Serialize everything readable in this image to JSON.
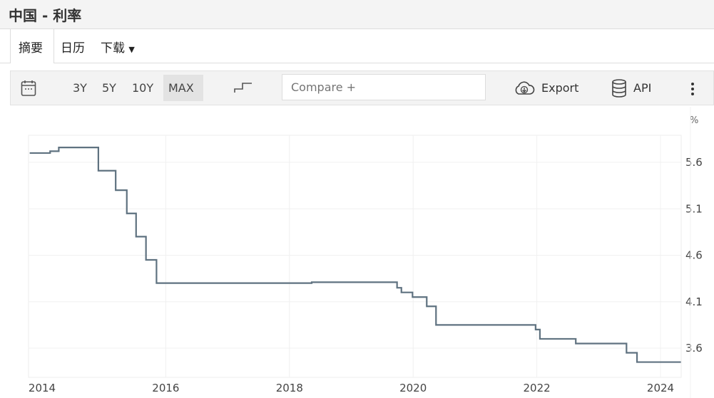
{
  "header": {
    "title": "中国 - 利率"
  },
  "tabs": [
    {
      "label": "摘要"
    },
    {
      "label": "日历"
    },
    {
      "label": "下载"
    }
  ],
  "toolbar": {
    "ranges": [
      "3Y",
      "5Y",
      "10Y",
      "MAX"
    ],
    "selected_range": "MAX",
    "compare_placeholder": "Compare +",
    "export_label": "Export",
    "api_label": "API",
    "icons": [
      "calendar-icon",
      "step-chart-icon",
      "cloud-download-icon",
      "database-icon",
      "more-vertical-icon"
    ]
  },
  "chart_data": {
    "type": "line",
    "step": true,
    "unit_label": "%",
    "line_color": "#5f7280",
    "x": [
      2013.8,
      2014.13,
      2014.27,
      2014.91,
      2015.19,
      2015.37,
      2015.52,
      2015.68,
      2015.85,
      2018.36,
      2019.74,
      2019.81,
      2019.99,
      2020.22,
      2020.37,
      2021.98,
      2022.05,
      2022.63,
      2023.45,
      2023.62,
      2024.33
    ],
    "y": [
      5.7,
      5.72,
      5.76,
      5.51,
      5.3,
      5.05,
      4.8,
      4.55,
      4.3,
      4.31,
      4.25,
      4.2,
      4.15,
      4.05,
      3.85,
      3.8,
      3.7,
      3.65,
      3.55,
      3.45,
      3.45
    ],
    "x_ticks": [
      "2014",
      "2016",
      "2018",
      "2020",
      "2022",
      "2024"
    ],
    "y_ticks": [
      "5.6",
      "5.1",
      "4.6",
      "4.1",
      "3.6"
    ],
    "xlim": [
      2013.8,
      2024.33
    ],
    "ylim": [
      3.3,
      5.9
    ],
    "grid": true,
    "y_axis_side": "right"
  }
}
